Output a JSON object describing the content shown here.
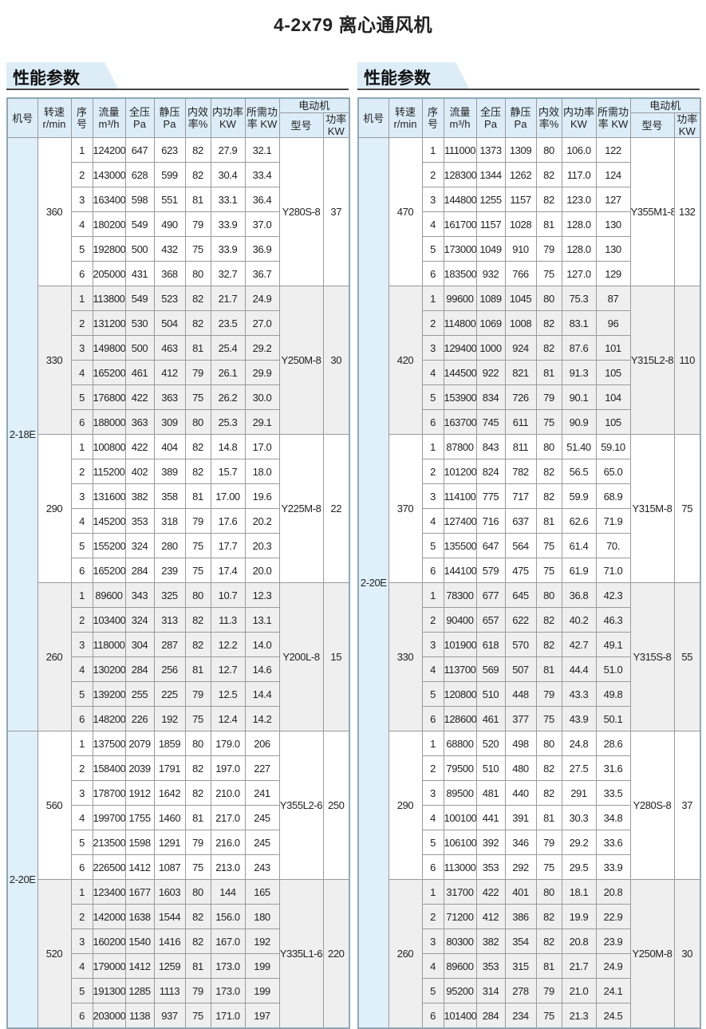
{
  "title": "4-2x79 离心通风机",
  "headers": {
    "model": [
      "机号"
    ],
    "speed": [
      "转速",
      "r/min"
    ],
    "seq": [
      "序",
      "号"
    ],
    "flow": [
      "流量",
      "m³/h"
    ],
    "total_pressure": [
      "全压",
      "Pa"
    ],
    "static_pressure": [
      "静压",
      "Pa"
    ],
    "efficiency": [
      "内效",
      "率%"
    ],
    "internal_power": [
      "内功率",
      "KW"
    ],
    "required_power": [
      "所需功",
      "率 KW"
    ],
    "motor": "电动机",
    "motor_model": [
      "型号"
    ],
    "motor_power": [
      "功率",
      "KW"
    ]
  },
  "panels": [
    {
      "section_title": "性能参数",
      "groups": [
        {
          "model": "2-18E",
          "speeds": [
            {
              "speed": "360",
              "motor_model": "Y280S-8",
              "motor_power": "37",
              "rows": [
                [
                  "1",
                  "124200",
                  "647",
                  "623",
                  "82",
                  "27.9",
                  "32.1"
                ],
                [
                  "2",
                  "143000",
                  "628",
                  "599",
                  "82",
                  "30.4",
                  "33.4"
                ],
                [
                  "3",
                  "163400",
                  "598",
                  "551",
                  "81",
                  "33.1",
                  "36.4"
                ],
                [
                  "4",
                  "180200",
                  "549",
                  "490",
                  "79",
                  "33.9",
                  "37.0"
                ],
                [
                  "5",
                  "192800",
                  "500",
                  "432",
                  "75",
                  "33.9",
                  "36.9"
                ],
                [
                  "6",
                  "205000",
                  "431",
                  "368",
                  "80",
                  "32.7",
                  "36.7"
                ]
              ]
            },
            {
              "speed": "330",
              "motor_model": "Y250M-8",
              "motor_power": "30",
              "rows": [
                [
                  "1",
                  "113800",
                  "549",
                  "523",
                  "82",
                  "21.7",
                  "24.9"
                ],
                [
                  "2",
                  "131200",
                  "530",
                  "504",
                  "82",
                  "23.5",
                  "27.0"
                ],
                [
                  "3",
                  "149800",
                  "500",
                  "463",
                  "81",
                  "25.4",
                  "29.2"
                ],
                [
                  "4",
                  "165200",
                  "461",
                  "412",
                  "79",
                  "26.1",
                  "29.9"
                ],
                [
                  "5",
                  "176800",
                  "422",
                  "363",
                  "75",
                  "26.2",
                  "30.0"
                ],
                [
                  "6",
                  "188000",
                  "363",
                  "309",
                  "80",
                  "25.3",
                  "29.1"
                ]
              ]
            },
            {
              "speed": "290",
              "motor_model": "Y225M-8",
              "motor_power": "22",
              "rows": [
                [
                  "1",
                  "100800",
                  "422",
                  "404",
                  "82",
                  "14.8",
                  "17.0"
                ],
                [
                  "2",
                  "115200",
                  "402",
                  "389",
                  "82",
                  "15.7",
                  "18.0"
                ],
                [
                  "3",
                  "131600",
                  "382",
                  "358",
                  "81",
                  "17.00",
                  "19.6"
                ],
                [
                  "4",
                  "145200",
                  "353",
                  "318",
                  "79",
                  "17.6",
                  "20.2"
                ],
                [
                  "5",
                  "155200",
                  "324",
                  "280",
                  "75",
                  "17.7",
                  "20.3"
                ],
                [
                  "6",
                  "165200",
                  "284",
                  "239",
                  "75",
                  "17.4",
                  "20.0"
                ]
              ]
            },
            {
              "speed": "260",
              "motor_model": "Y200L-8",
              "motor_power": "15",
              "rows": [
                [
                  "1",
                  "89600",
                  "343",
                  "325",
                  "80",
                  "10.7",
                  "12.3"
                ],
                [
                  "2",
                  "103400",
                  "324",
                  "313",
                  "82",
                  "11.3",
                  "13.1"
                ],
                [
                  "3",
                  "118000",
                  "304",
                  "287",
                  "82",
                  "12.2",
                  "14.0"
                ],
                [
                  "4",
                  "130200",
                  "284",
                  "256",
                  "81",
                  "12.7",
                  "14.6"
                ],
                [
                  "5",
                  "139200",
                  "255",
                  "225",
                  "79",
                  "12.5",
                  "14.4"
                ],
                [
                  "6",
                  "148200",
                  "226",
                  "192",
                  "75",
                  "12.4",
                  "14.2"
                ]
              ]
            }
          ]
        },
        {
          "model": "2-20E",
          "speeds": [
            {
              "speed": "560",
              "motor_model": "Y355L2-6",
              "motor_power": "250",
              "rows": [
                [
                  "1",
                  "137500",
                  "2079",
                  "1859",
                  "80",
                  "179.0",
                  "206"
                ],
                [
                  "2",
                  "158400",
                  "2039",
                  "1791",
                  "82",
                  "197.0",
                  "227"
                ],
                [
                  "3",
                  "178700",
                  "1912",
                  "1642",
                  "82",
                  "210.0",
                  "241"
                ],
                [
                  "4",
                  "199700",
                  "1755",
                  "1460",
                  "81",
                  "217.0",
                  "245"
                ],
                [
                  "5",
                  "213500",
                  "1598",
                  "1291",
                  "79",
                  "216.0",
                  "245"
                ],
                [
                  "6",
                  "226500",
                  "1412",
                  "1087",
                  "75",
                  "213.0",
                  "243"
                ]
              ]
            },
            {
              "speed": "520",
              "motor_model": "Y335L1-6",
              "motor_power": "220",
              "rows": [
                [
                  "1",
                  "123400",
                  "1677",
                  "1603",
                  "80",
                  "144",
                  "165"
                ],
                [
                  "2",
                  "142000",
                  "1638",
                  "1544",
                  "82",
                  "156.0",
                  "180"
                ],
                [
                  "3",
                  "160200",
                  "1540",
                  "1416",
                  "82",
                  "167.0",
                  "192"
                ],
                [
                  "4",
                  "179000",
                  "1412",
                  "1259",
                  "81",
                  "173.0",
                  "199"
                ],
                [
                  "5",
                  "191300",
                  "1285",
                  "1113",
                  "79",
                  "173.0",
                  "199"
                ],
                [
                  "6",
                  "203000",
                  "1138",
                  "937",
                  "75",
                  "171.0",
                  "197"
                ]
              ]
            }
          ]
        }
      ]
    },
    {
      "section_title": "性能参数",
      "groups": [
        {
          "model": "2-20E",
          "speeds": [
            {
              "speed": "470",
              "motor_model": "Y355M1-8",
              "motor_power": "132",
              "rows": [
                [
                  "1",
                  "111000",
                  "1373",
                  "1309",
                  "80",
                  "106.0",
                  "122"
                ],
                [
                  "2",
                  "128300",
                  "1344",
                  "1262",
                  "82",
                  "117.0",
                  "124"
                ],
                [
                  "3",
                  "144800",
                  "1255",
                  "1157",
                  "82",
                  "123.0",
                  "127"
                ],
                [
                  "4",
                  "161700",
                  "1157",
                  "1028",
                  "81",
                  "128.0",
                  "130"
                ],
                [
                  "5",
                  "173000",
                  "1049",
                  "910",
                  "79",
                  "128.0",
                  "130"
                ],
                [
                  "6",
                  "183500",
                  "932",
                  "766",
                  "75",
                  "127.0",
                  "129"
                ]
              ]
            },
            {
              "speed": "420",
              "motor_model": "Y315L2-8",
              "motor_power": "110",
              "rows": [
                [
                  "1",
                  "99600",
                  "1089",
                  "1045",
                  "80",
                  "75.3",
                  "87"
                ],
                [
                  "2",
                  "114800",
                  "1069",
                  "1008",
                  "82",
                  "83.1",
                  "96"
                ],
                [
                  "3",
                  "129400",
                  "1000",
                  "924",
                  "82",
                  "87.6",
                  "101"
                ],
                [
                  "4",
                  "144500",
                  "922",
                  "821",
                  "81",
                  "91.3",
                  "105"
                ],
                [
                  "5",
                  "153900",
                  "834",
                  "726",
                  "79",
                  "90.1",
                  "104"
                ],
                [
                  "6",
                  "163700",
                  "745",
                  "611",
                  "75",
                  "90.9",
                  "105"
                ]
              ]
            },
            {
              "speed": "370",
              "motor_model": "Y315M-8",
              "motor_power": "75",
              "rows": [
                [
                  "1",
                  "87800",
                  "843",
                  "811",
                  "80",
                  "51.40",
                  "59.10"
                ],
                [
                  "2",
                  "101200",
                  "824",
                  "782",
                  "82",
                  "56.5",
                  "65.0"
                ],
                [
                  "3",
                  "114100",
                  "775",
                  "717",
                  "82",
                  "59.9",
                  "68.9"
                ],
                [
                  "4",
                  "127400",
                  "716",
                  "637",
                  "81",
                  "62.6",
                  "71.9"
                ],
                [
                  "5",
                  "135500",
                  "647",
                  "564",
                  "75",
                  "61.4",
                  "70."
                ],
                [
                  "6",
                  "144100",
                  "579",
                  "475",
                  "75",
                  "61.9",
                  "71.0"
                ]
              ]
            },
            {
              "speed": "330",
              "motor_model": "Y315S-8",
              "motor_power": "55",
              "rows": [
                [
                  "1",
                  "78300",
                  "677",
                  "645",
                  "80",
                  "36.8",
                  "42.3"
                ],
                [
                  "2",
                  "90400",
                  "657",
                  "622",
                  "82",
                  "40.2",
                  "46.3"
                ],
                [
                  "3",
                  "101900",
                  "618",
                  "570",
                  "82",
                  "42.7",
                  "49.1"
                ],
                [
                  "4",
                  "113700",
                  "569",
                  "507",
                  "81",
                  "44.4",
                  "51.0"
                ],
                [
                  "5",
                  "120800",
                  "510",
                  "448",
                  "79",
                  "43.3",
                  "49.8"
                ],
                [
                  "6",
                  "128600",
                  "461",
                  "377",
                  "75",
                  "43.9",
                  "50.1"
                ]
              ]
            },
            {
              "speed": "290",
              "motor_model": "Y280S-8",
              "motor_power": "37",
              "rows": [
                [
                  "1",
                  "68800",
                  "520",
                  "498",
                  "80",
                  "24.8",
                  "28.6"
                ],
                [
                  "2",
                  "79500",
                  "510",
                  "480",
                  "82",
                  "27.5",
                  "31.6"
                ],
                [
                  "3",
                  "89500",
                  "481",
                  "440",
                  "82",
                  "291",
                  "33.5"
                ],
                [
                  "4",
                  "100100",
                  "441",
                  "391",
                  "81",
                  "30.3",
                  "34.8"
                ],
                [
                  "5",
                  "106100",
                  "392",
                  "346",
                  "79",
                  "29.2",
                  "33.6"
                ],
                [
                  "6",
                  "113000",
                  "353",
                  "292",
                  "75",
                  "29.5",
                  "33.9"
                ]
              ]
            },
            {
              "speed": "260",
              "motor_model": "Y250M-8",
              "motor_power": "30",
              "rows": [
                [
                  "1",
                  "31700",
                  "422",
                  "401",
                  "80",
                  "18.1",
                  "20.8"
                ],
                [
                  "2",
                  "71200",
                  "412",
                  "386",
                  "82",
                  "19.9",
                  "22.9"
                ],
                [
                  "3",
                  "80300",
                  "382",
                  "354",
                  "82",
                  "20.8",
                  "23.9"
                ],
                [
                  "4",
                  "89600",
                  "353",
                  "315",
                  "81",
                  "21.7",
                  "24.9"
                ],
                [
                  "5",
                  "95200",
                  "314",
                  "278",
                  "79",
                  "21.0",
                  "24.1"
                ],
                [
                  "6",
                  "101400",
                  "284",
                  "234",
                  "75",
                  "21.3",
                  "24.5"
                ]
              ]
            }
          ]
        }
      ]
    }
  ]
}
